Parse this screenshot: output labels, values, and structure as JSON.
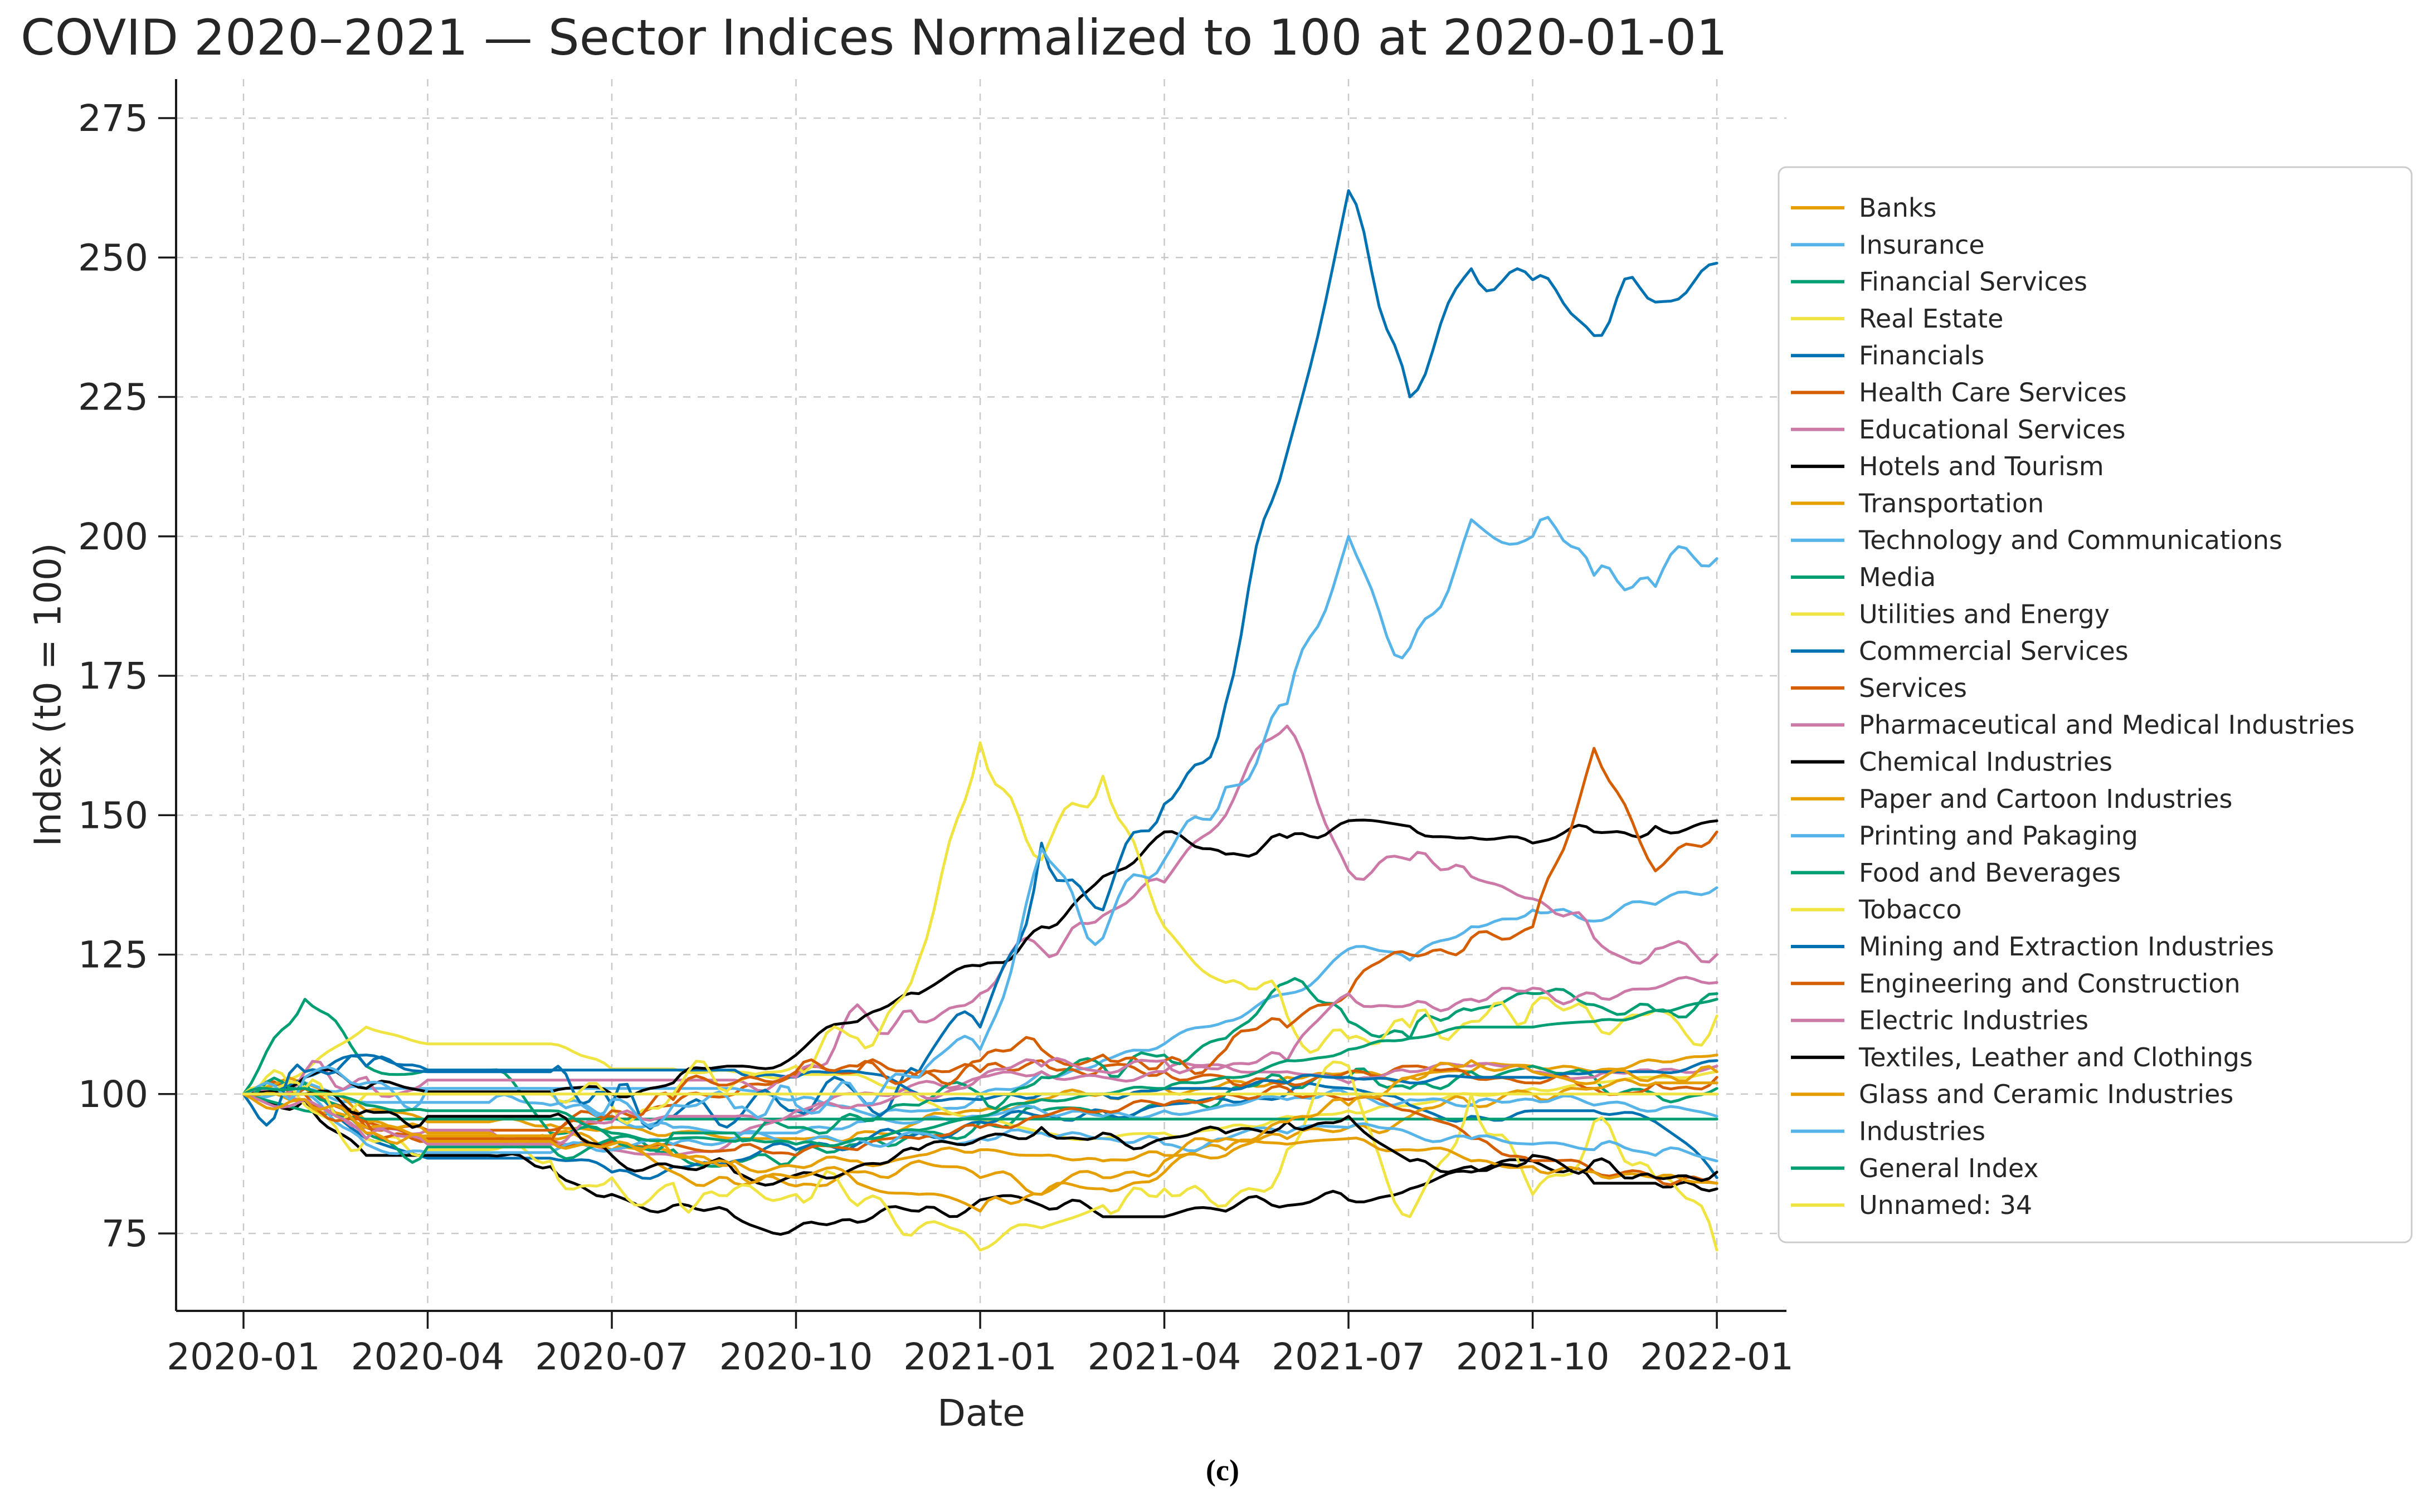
{
  "chart_data": {
    "type": "line",
    "title": "COVID 2020–2021 — Sector Indices Normalized to 100 at 2020-01-01",
    "xlabel": "Date",
    "ylabel": "Index (t0 = 100)",
    "caption": "(c)",
    "x_tick_labels": [
      "2020-01",
      "2020-04",
      "2020-07",
      "2020-10",
      "2021-01",
      "2021-04",
      "2021-07",
      "2021-10",
      "2022-01"
    ],
    "y_ticks": [
      75,
      100,
      125,
      150,
      175,
      200,
      225,
      250,
      275
    ],
    "ylim": [
      61,
      282
    ],
    "grid": true,
    "legend_position": "right",
    "months": [
      "2020-01",
      "2020-02",
      "2020-03",
      "2020-04",
      "2020-05",
      "2020-06",
      "2020-07",
      "2020-08",
      "2020-09",
      "2020-10",
      "2020-11",
      "2020-12",
      "2021-01",
      "2021-02",
      "2021-03",
      "2021-04",
      "2021-05",
      "2021-06",
      "2021-07",
      "2021-08",
      "2021-09",
      "2021-10",
      "2021-11",
      "2021-12",
      "2022-01"
    ],
    "palette": {
      "orange": "#E69F00",
      "sky_blue": "#56B4E9",
      "green": "#009E73",
      "yellow": "#F0E442",
      "blue": "#0072B2",
      "vermillion": "#D55E00",
      "pink": "#CC79A7",
      "black": "#000000"
    },
    "style": {
      "background": "#ffffff",
      "grid_color": "#c9c9c9",
      "text_color": "#262626",
      "spine_color": "#1a1a1a",
      "legend_border": "#cccccc",
      "line_width": 5
    },
    "series": [
      {
        "name": "Banks",
        "color": "#E69F00",
        "volatility": 1.2,
        "values": [
          100,
          102,
          97,
          95,
          95,
          94.5,
          94,
          93,
          92,
          92,
          93,
          95,
          97,
          99,
          100,
          101,
          102,
          103,
          104,
          103,
          104,
          105,
          104,
          106,
          107
        ]
      },
      {
        "name": "Insurance",
        "color": "#56B4E9",
        "volatility": 1.5,
        "values": [
          100,
          101,
          98.5,
          98.5,
          98.5,
          98,
          96,
          94,
          93,
          93,
          95,
          97,
          100,
          104,
          106,
          109,
          113,
          118,
          126,
          124,
          130,
          133,
          131,
          134,
          137
        ]
      },
      {
        "name": "Financial Services",
        "color": "#009E73",
        "volatility": 2.5,
        "values": [
          100,
          117,
          105,
          104.3,
          104.3,
          93,
          92,
          90,
          88,
          89,
          91,
          93,
          95,
          97,
          96,
          98,
          100,
          102,
          103,
          101,
          104,
          105,
          103,
          100,
          101
        ]
      },
      {
        "name": "Real Estate",
        "color": "#F0E442",
        "volatility": 0.8,
        "values": [
          100,
          104,
          112,
          109,
          109,
          109,
          104.5,
          104.5,
          104,
          103.5,
          103.5,
          99,
          95,
          93,
          92,
          93,
          94,
          96,
          97,
          98,
          100,
          101,
          102,
          103,
          104
        ]
      },
      {
        "name": "Financials",
        "color": "#0072B2",
        "volatility": 1.5,
        "values": [
          100,
          101,
          92,
          88.5,
          88.5,
          88.5,
          86,
          87,
          88,
          90,
          91,
          93,
          95,
          96,
          97,
          98,
          99,
          100,
          101,
          98,
          96,
          97,
          97,
          95,
          85
        ]
      },
      {
        "name": "Health Care Services",
        "color": "#D55E00",
        "volatility": 2,
        "values": [
          100,
          101,
          95,
          93.5,
          93.5,
          93.5,
          96,
          98,
          100,
          103.5,
          104,
          103,
          104,
          106,
          105,
          104,
          103,
          102,
          104,
          105,
          103,
          102,
          101,
          102,
          103
        ]
      },
      {
        "name": "Educational Services",
        "color": "#CC79A7",
        "volatility": 1.2,
        "values": [
          100,
          99,
          94,
          93.5,
          93.5,
          92,
          90,
          89,
          92,
          96,
          100,
          102,
          103,
          104,
          103,
          104,
          105,
          104,
          102,
          104,
          105,
          104,
          103,
          104,
          105
        ]
      },
      {
        "name": "Hotels and Tourism",
        "color": "#000000",
        "volatility": 2,
        "values": [
          100,
          99,
          89,
          89,
          89,
          87,
          82,
          80,
          78,
          76,
          77,
          79,
          81,
          80,
          78,
          78,
          79,
          80,
          81,
          83,
          86,
          88,
          84,
          84,
          83
        ]
      },
      {
        "name": "Transportation",
        "color": "#E69F00",
        "volatility": 1.8,
        "values": [
          100,
          101,
          95,
          93,
          93,
          92,
          90,
          86,
          84,
          83.5,
          86,
          88,
          85,
          82,
          83,
          86,
          89,
          92,
          94,
          96,
          98,
          100,
          101,
          102,
          102
        ]
      },
      {
        "name": "Technology and Communications",
        "color": "#56B4E9",
        "volatility": 1.2,
        "values": [
          100,
          102,
          101,
          101,
          101,
          101,
          101,
          101,
          101,
          99,
          97,
          95,
          96,
          97,
          96,
          97,
          98,
          99,
          100,
          99,
          98,
          99,
          98,
          97,
          96
        ]
      },
      {
        "name": "Media",
        "color": "#009E73",
        "volatility": 0,
        "values": [
          100,
          97,
          95.5,
          95.5,
          95.5,
          95.5,
          95.5,
          95.5,
          95.5,
          95.5,
          95.5,
          95.5,
          95.5,
          95.5,
          95.5,
          95.5,
          95.5,
          95.5,
          95.5,
          95.5,
          95.5,
          95.5,
          95.5,
          95.5,
          95.5
        ]
      },
      {
        "name": "Utilities and Energy",
        "color": "#F0E442",
        "volatility": 5,
        "values": [
          100,
          98,
          92,
          90,
          90,
          88,
          85,
          84,
          83,
          82,
          80,
          76,
          72,
          76,
          80,
          83,
          80,
          90,
          105,
          78,
          100,
          82,
          95,
          85,
          72
        ]
      },
      {
        "name": "Commercial Services",
        "color": "#0072B2",
        "volatility": 1,
        "values": [
          100,
          103,
          107,
          104.3,
          104.3,
          104.3,
          104.3,
          104.3,
          104.3,
          103,
          104,
          100,
          99,
          100,
          100,
          101,
          101,
          102,
          103,
          102,
          103,
          103,
          104,
          104,
          106
        ]
      },
      {
        "name": "Services",
        "color": "#D55E00",
        "volatility": 1.5,
        "values": [
          100,
          100,
          94,
          92,
          92,
          92,
          91.5,
          91,
          90,
          89,
          90,
          92,
          94,
          96,
          97,
          98,
          100,
          101,
          99,
          97,
          92,
          88,
          86,
          85,
          84
        ]
      },
      {
        "name": "Pharmaceutical and Medical Industries",
        "color": "#CC79A7",
        "volatility": 4,
        "values": [
          100,
          104,
          103,
          102.5,
          102.5,
          102.5,
          102.5,
          102.5,
          102.5,
          103,
          116,
          113,
          118,
          126,
          132,
          138,
          150,
          166,
          140,
          142,
          139,
          135,
          128,
          126,
          125
        ]
      },
      {
        "name": "Chemical Industries",
        "color": "#000000",
        "volatility": 2,
        "values": [
          100,
          103,
          101,
          100.4,
          100.4,
          100.4,
          100,
          102,
          105,
          107,
          113,
          118,
          123,
          130,
          139,
          147,
          143,
          146,
          149,
          148,
          146,
          145,
          147,
          148,
          149
        ]
      },
      {
        "name": "Paper and Cartoon Industries",
        "color": "#E69F00",
        "volatility": 1.5,
        "values": [
          100,
          99,
          94,
          92.5,
          92.5,
          92.5,
          90,
          89,
          88,
          87,
          88,
          89,
          90,
          89,
          88,
          89,
          90,
          91,
          92,
          90,
          88,
          87,
          86,
          85,
          84
        ]
      },
      {
        "name": "Printing and Pakaging",
        "color": "#56B4E9",
        "volatility": 1.5,
        "values": [
          100,
          100,
          91,
          89.5,
          89.5,
          89.5,
          90,
          91,
          92,
          91,
          92,
          93,
          92,
          93,
          92,
          91,
          92,
          93,
          94,
          93,
          92,
          91,
          90,
          89,
          88
        ]
      },
      {
        "name": "Food and Beverages",
        "color": "#009E73",
        "volatility": 3,
        "values": [
          100,
          102,
          93,
          90.5,
          90.5,
          90.5,
          92,
          93,
          93,
          94,
          96,
          98,
          100,
          103,
          105,
          107,
          110,
          120,
          113,
          110,
          115,
          118,
          116,
          115,
          118
        ]
      },
      {
        "name": "Tobacco",
        "color": "#F0E442",
        "volatility": 5,
        "values": [
          100,
          101,
          100,
          100,
          100,
          100,
          98,
          100,
          102,
          105,
          110,
          124,
          163,
          142,
          157,
          130,
          120,
          114,
          110,
          112,
          113,
          116,
          113,
          115,
          114
        ]
      },
      {
        "name": "Mining and Extraction Industries",
        "color": "#0072B2",
        "volatility": 6,
        "values": [
          100,
          104,
          105,
          104,
          104,
          104,
          98,
          96,
          95,
          97,
          100,
          104,
          112,
          145,
          133,
          152,
          170,
          215,
          262,
          225,
          248,
          246,
          236,
          242,
          249
        ]
      },
      {
        "name": "Engineering and Construction",
        "color": "#D55E00",
        "volatility": 3,
        "values": [
          100,
          100,
          95,
          91.5,
          91.5,
          91.5,
          97,
          99,
          102,
          104,
          105,
          104,
          106,
          108,
          107,
          106,
          108,
          112,
          118,
          125,
          128,
          130,
          162,
          140,
          147
        ]
      },
      {
        "name": "Electric Industries",
        "color": "#CC79A7",
        "volatility": 2,
        "values": [
          100,
          99,
          92,
          91,
          91,
          91,
          95,
          96,
          96,
          97,
          98,
          100,
          103,
          105,
          104,
          106,
          105,
          106,
          118,
          116,
          117,
          119,
          118,
          119,
          120
        ]
      },
      {
        "name": "Textiles, Leather and Clothings",
        "color": "#000000",
        "volatility": 2.5,
        "values": [
          100,
          100,
          97,
          96,
          96,
          96,
          89,
          87,
          86,
          85.5,
          87,
          90,
          92,
          94,
          93,
          92,
          93,
          95,
          96,
          88,
          87,
          89,
          88,
          85,
          86
        ]
      },
      {
        "name": "Glass and Ceramic Industries",
        "color": "#E69F00",
        "volatility": 2.5,
        "values": [
          100,
          99,
          93,
          91.5,
          91.5,
          91.5,
          91,
          89,
          87,
          85,
          84,
          82,
          79,
          82,
          85,
          88,
          92,
          95,
          98,
          103,
          106,
          104,
          102,
          103,
          104
        ]
      },
      {
        "name": "Industries",
        "color": "#56B4E9",
        "volatility": 5,
        "values": [
          100,
          103,
          102,
          101,
          101,
          101,
          99,
          98,
          97.5,
          98,
          100,
          103,
          108,
          144,
          128,
          142,
          155,
          170,
          200,
          180,
          203,
          200,
          193,
          191,
          196
        ]
      },
      {
        "name": "General Index",
        "color": "#009E73",
        "volatility": 0.8,
        "values": [
          100,
          101,
          98,
          97,
          97,
          97,
          93,
          92,
          91.5,
          91,
          92,
          93.5,
          96,
          99,
          100,
          101,
          103,
          106,
          108,
          110,
          112,
          112,
          113,
          115,
          117
        ]
      },
      {
        "name": "Unnamed: 34",
        "color": "#F0E442",
        "volatility": 0,
        "values": [
          100,
          100,
          100,
          100,
          100,
          100,
          100,
          100,
          100,
          100,
          100,
          100,
          100,
          100,
          100,
          100,
          100,
          100,
          100,
          100,
          100,
          100,
          100,
          100,
          100
        ]
      }
    ]
  }
}
